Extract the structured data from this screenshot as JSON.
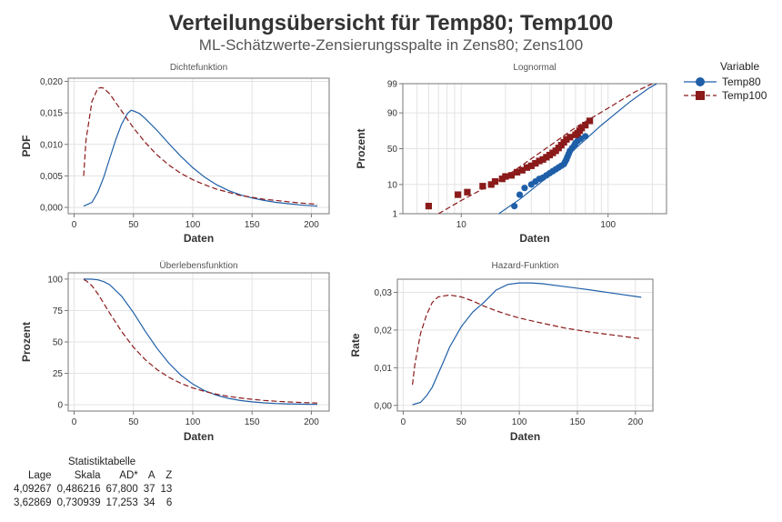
{
  "title": "Verteilungsübersicht für Temp80; Temp100",
  "subtitle": "ML-Schätzwerte-Zensierungsspalte in Zens80; Zens100",
  "colors": {
    "temp80": "#1f5fa8",
    "temp100": "#8b1a1a",
    "grid": "#e3e3e3",
    "axis": "#777777"
  },
  "legend": {
    "title": "Variable",
    "items": [
      {
        "name": "Temp80",
        "marker": "circle",
        "line": "solid",
        "color": "#1f5fa8"
      },
      {
        "name": "Temp100",
        "marker": "square",
        "line": "dashed",
        "color": "#8b1a1a"
      }
    ]
  },
  "chart_data": [
    {
      "id": "pdf",
      "type": "line",
      "title": "Dichtefunktion",
      "xlabel": "Daten",
      "ylabel": "PDF",
      "xlim": [
        -5,
        215
      ],
      "ylim": [
        -0.001,
        0.0205
      ],
      "xticks": [
        0,
        50,
        100,
        150,
        200
      ],
      "xtick_labels": [
        "0",
        "50",
        "100",
        "150",
        "200"
      ],
      "yticks": [
        0,
        0.005,
        0.01,
        0.015,
        0.02
      ],
      "ytick_labels": [
        "0,000",
        "0,005",
        "0,010",
        "0,015",
        "0,020"
      ],
      "series": [
        {
          "name": "Temp80",
          "x": [
            8,
            15,
            20,
            25,
            30,
            35,
            40,
            45,
            48,
            50,
            55,
            60,
            70,
            80,
            90,
            100,
            110,
            120,
            130,
            140,
            150,
            160,
            170,
            180,
            190,
            205
          ],
          "y": [
            0.0002,
            0.0008,
            0.0024,
            0.0048,
            0.0078,
            0.0107,
            0.0132,
            0.0149,
            0.0154,
            0.0153,
            0.0149,
            0.0141,
            0.0122,
            0.0101,
            0.0081,
            0.0063,
            0.0048,
            0.0036,
            0.0027,
            0.002,
            0.0015,
            0.0011,
            0.0008,
            0.0006,
            0.0004,
            0.0002
          ]
        },
        {
          "name": "Temp100",
          "x": [
            8,
            10,
            15,
            20,
            23,
            25,
            30,
            40,
            50,
            60,
            70,
            80,
            90,
            100,
            110,
            120,
            130,
            140,
            150,
            160,
            170,
            180,
            190,
            205
          ],
          "y": [
            0.005,
            0.0107,
            0.0168,
            0.0189,
            0.019,
            0.0189,
            0.018,
            0.0153,
            0.0126,
            0.0103,
            0.0083,
            0.0067,
            0.0054,
            0.0044,
            0.0036,
            0.0029,
            0.0024,
            0.0019,
            0.0016,
            0.0013,
            0.0011,
            0.0009,
            0.0007,
            0.0005
          ]
        }
      ]
    },
    {
      "id": "lognormal",
      "type": "scatter",
      "title": "Lognormal",
      "xlabel": "Daten",
      "ylabel": "Prozent",
      "x_scale": "log",
      "y_scale": "normal-probability",
      "xlim": [
        4,
        250
      ],
      "ylim": [
        1,
        99
      ],
      "xticks": [
        10,
        100
      ],
      "xtick_labels": [
        "10",
        "100"
      ],
      "yticks": [
        1,
        10,
        50,
        90,
        99
      ],
      "ytick_labels": [
        "1",
        "10",
        "50",
        "90",
        "99"
      ],
      "series": [
        {
          "name": "Temp80",
          "fit_x": [
            18,
            25,
            40,
            59.7,
            90,
            140,
            190,
            215
          ],
          "fit_y": [
            1.0,
            3.5,
            17.0,
            50,
            80.0,
            95.2,
            98.5,
            99
          ],
          "points_x": [
            23,
            25,
            27,
            30,
            32,
            34,
            36,
            38,
            40,
            42,
            44,
            46,
            48,
            50,
            51,
            52,
            53,
            54,
            55,
            57,
            59,
            60,
            62,
            65,
            70
          ],
          "points_y": [
            2,
            5,
            8,
            10,
            12,
            14,
            15,
            17,
            19,
            21,
            23,
            25,
            27,
            29,
            32,
            35,
            39,
            43,
            47,
            51,
            55,
            58,
            61,
            64,
            67
          ]
        },
        {
          "name": "Temp100",
          "fit_x": [
            7,
            10,
            20,
            37.6,
            60,
            100,
            150,
            200
          ],
          "fit_y": [
            1.0,
            3.2,
            15.7,
            50,
            77.6,
            92.6,
            97.8,
            99
          ],
          "points_x": [
            6,
            9.5,
            11,
            14,
            16,
            17,
            19,
            20,
            22,
            24,
            26,
            28,
            30,
            32,
            34,
            36,
            38,
            40,
            42,
            44,
            46,
            48,
            50,
            52,
            55,
            60,
            62,
            64,
            66,
            70,
            75
          ],
          "points_y": [
            2,
            5,
            6,
            9,
            10,
            12,
            14,
            16,
            17,
            20,
            22,
            25,
            27,
            30,
            33,
            35,
            38,
            41,
            44,
            47,
            51,
            55,
            59,
            63,
            66,
            69,
            71,
            74,
            77,
            80,
            84
          ]
        }
      ]
    },
    {
      "id": "survival",
      "type": "line",
      "title": "Überlebensfunktion",
      "xlabel": "Daten",
      "ylabel": "Prozent",
      "xlim": [
        -5,
        215
      ],
      "ylim": [
        -5,
        105
      ],
      "xticks": [
        0,
        50,
        100,
        150,
        200
      ],
      "xtick_labels": [
        "0",
        "50",
        "100",
        "150",
        "200"
      ],
      "yticks": [
        0,
        25,
        50,
        75,
        100
      ],
      "ytick_labels": [
        "0",
        "25",
        "50",
        "75",
        "100"
      ],
      "series": [
        {
          "name": "Temp80",
          "x": [
            8,
            15,
            20,
            25,
            30,
            40,
            50,
            60,
            70,
            80,
            90,
            100,
            110,
            120,
            130,
            140,
            150,
            160,
            170,
            180,
            190,
            205
          ],
          "y": [
            100,
            99.9,
            99.4,
            98,
            95.5,
            86.4,
            73.3,
            58.5,
            44.8,
            33,
            23.6,
            16.5,
            11.2,
            7.6,
            5.1,
            3.4,
            2.3,
            1.5,
            1,
            0.7,
            0.5,
            0.3
          ]
        },
        {
          "name": "Temp100",
          "x": [
            8,
            10,
            15,
            20,
            25,
            30,
            40,
            50,
            60,
            70,
            80,
            90,
            100,
            110,
            120,
            130,
            140,
            150,
            160,
            170,
            180,
            190,
            205
          ],
          "y": [
            99.6,
            98.8,
            94.7,
            88.3,
            80.7,
            72.9,
            58.3,
            45.8,
            35.8,
            27.9,
            21.8,
            17.1,
            13.4,
            10.6,
            8.4,
            6.7,
            5.4,
            4.3,
            3.5,
            2.8,
            2.3,
            1.9,
            1.4
          ]
        }
      ]
    },
    {
      "id": "hazard",
      "type": "line",
      "title": "Hazard-Funktion",
      "xlabel": "Daten",
      "ylabel": "Rate",
      "xlim": [
        -5,
        215
      ],
      "ylim": [
        -0.0015,
        0.0335
      ],
      "xticks": [
        0,
        50,
        100,
        150,
        200
      ],
      "xtick_labels": [
        "0",
        "50",
        "100",
        "150",
        "200"
      ],
      "yticks": [
        0,
        0.01,
        0.02,
        0.03
      ],
      "ytick_labels": [
        "0,00",
        "0,01",
        "0,02",
        "0,03"
      ],
      "series": [
        {
          "name": "Temp80",
          "x": [
            8,
            15,
            20,
            25,
            30,
            35,
            40,
            50,
            60,
            70,
            80,
            90,
            100,
            110,
            120,
            140,
            160,
            180,
            205
          ],
          "y": [
            0.0002,
            0.0008,
            0.0025,
            0.0048,
            0.0083,
            0.0118,
            0.0155,
            0.0209,
            0.0248,
            0.0275,
            0.0306,
            0.0321,
            0.0325,
            0.0325,
            0.0323,
            0.0315,
            0.0307,
            0.0298,
            0.0287
          ]
        },
        {
          "name": "Temp100",
          "x": [
            8,
            10,
            15,
            20,
            25,
            30,
            40,
            50,
            60,
            70,
            80,
            90,
            100,
            120,
            140,
            160,
            180,
            205
          ],
          "y": [
            0.0055,
            0.0108,
            0.0191,
            0.0239,
            0.0273,
            0.0288,
            0.0293,
            0.0288,
            0.0277,
            0.0263,
            0.0251,
            0.0241,
            0.0232,
            0.0218,
            0.0205,
            0.0195,
            0.0187,
            0.0177
          ]
        }
      ]
    }
  ],
  "stats_table": {
    "title": "Statistiktabelle",
    "headers": [
      "Lage",
      "Skala",
      "AD*",
      "A",
      "Z"
    ],
    "rows": [
      [
        "4,09267",
        "0,486216",
        "67,800",
        "37",
        "13"
      ],
      [
        "3,62869",
        "0,730939",
        "17,253",
        "34",
        "6"
      ]
    ]
  }
}
